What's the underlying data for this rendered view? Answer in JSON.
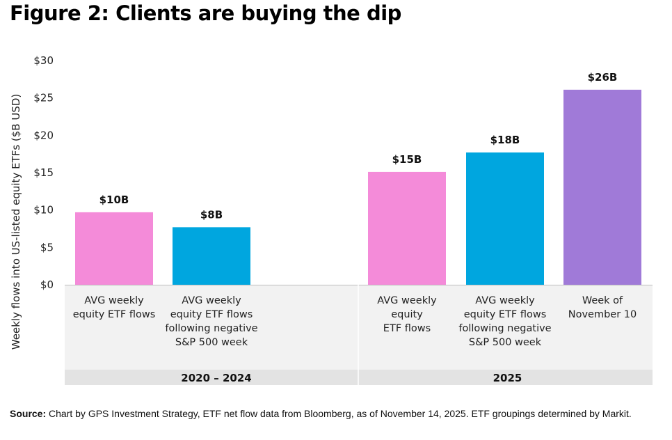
{
  "title": "Figure 2: Clients are buying the dip",
  "source": {
    "label": "Source:",
    "text": "Chart by GPS Investment Strategy, ETF net flow data from Bloomberg, as of November 14, 2025. ETF groupings determined by Markit."
  },
  "chart_data": {
    "type": "bar",
    "ylabel": "Weekly flows into US-listed equity ETFs ($B USD)",
    "ylim": [
      0,
      30
    ],
    "yticks": [
      "$0",
      "$5",
      "$10",
      "$15",
      "$20",
      "$25",
      "$30"
    ],
    "grid": false,
    "legend": "none",
    "groups": [
      {
        "name": "2020 – 2024",
        "bars": [
          {
            "label": [
              "AVG weekly",
              "equity ETF flows"
            ],
            "value": 9.7,
            "data_label": "$10B",
            "color": "#f48bd9"
          },
          {
            "label": [
              "AVG weekly",
              "equity ETF flows",
              "following negative",
              "S&P 500 week"
            ],
            "value": 7.7,
            "data_label": "$8B",
            "color": "#00a6df"
          }
        ]
      },
      {
        "name": "2025",
        "bars": [
          {
            "label": [
              "AVG weekly",
              "equity",
              "ETF flows"
            ],
            "value": 15.1,
            "data_label": "$15B",
            "color": "#f48bd9"
          },
          {
            "label": [
              "AVG weekly",
              "equity ETF flows",
              "following negative",
              "S&P 500 week"
            ],
            "value": 17.7,
            "data_label": "$18B",
            "color": "#00a6df"
          },
          {
            "label": [
              "Week of",
              "November 10"
            ],
            "value": 26.1,
            "data_label": "$26B",
            "color": "#a07ad8"
          }
        ]
      }
    ]
  }
}
